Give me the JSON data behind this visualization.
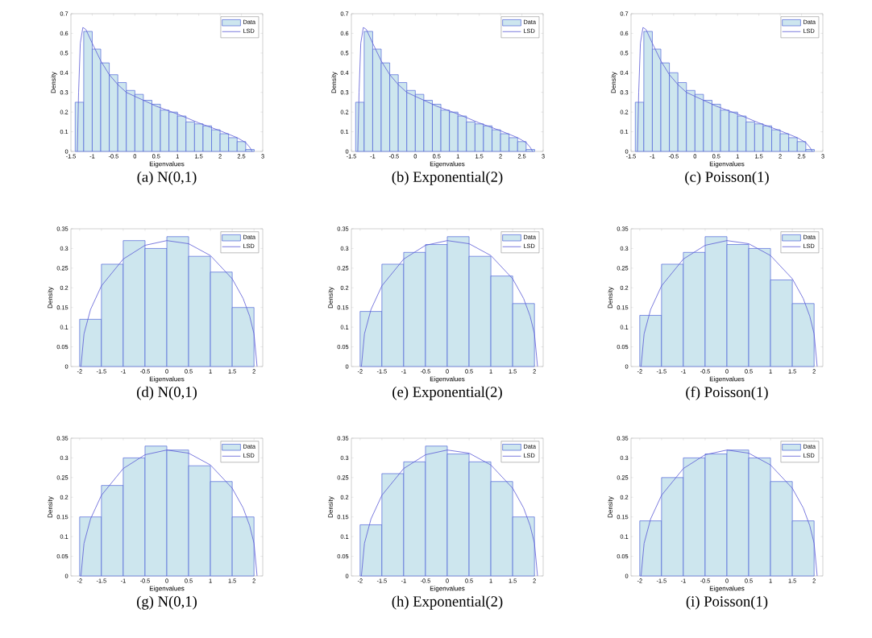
{
  "chart_data": [
    {
      "type": "histogram",
      "title": "(a) N(0,1)",
      "xlabel": "Eigenvalues",
      "ylabel": "Density",
      "xlim": [
        -1.5,
        3
      ],
      "xticks": [
        -1.5,
        -1,
        -0.5,
        0,
        0.5,
        1,
        1.5,
        2,
        2.5,
        3
      ],
      "ylim": [
        0,
        0.7
      ],
      "yticks": [
        0,
        0.1,
        0.2,
        0.3,
        0.4,
        0.5,
        0.6,
        0.7
      ],
      "legend": "top right",
      "series": [
        {
          "name": "Data",
          "color": "#cde6ee",
          "bins": [
            -1.4,
            -1.2,
            -1.0,
            -0.8,
            -0.6,
            -0.4,
            -0.2,
            0.0,
            0.2,
            0.4,
            0.6,
            0.8,
            1.0,
            1.2,
            1.4,
            1.6,
            1.8,
            2.0,
            2.2,
            2.4,
            2.6,
            2.8
          ],
          "values": [
            0.25,
            0.61,
            0.52,
            0.45,
            0.39,
            0.35,
            0.31,
            0.29,
            0.26,
            0.24,
            0.21,
            0.2,
            0.18,
            0.15,
            0.14,
            0.13,
            0.11,
            0.09,
            0.07,
            0.05,
            0.01
          ]
        },
        {
          "name": "LSD",
          "type": "line",
          "color": "#5b5bd6",
          "x": [
            -1.35,
            -1.32,
            -1.28,
            -1.22,
            -1.15,
            -1.0,
            -0.8,
            -0.6,
            -0.4,
            -0.2,
            0,
            0.2,
            0.5,
            1.0,
            1.5,
            2.0,
            2.4,
            2.6,
            2.7,
            2.75
          ],
          "values": [
            0,
            0.3,
            0.55,
            0.63,
            0.62,
            0.55,
            0.46,
            0.39,
            0.34,
            0.3,
            0.28,
            0.26,
            0.23,
            0.19,
            0.145,
            0.105,
            0.07,
            0.045,
            0.02,
            0
          ]
        }
      ]
    },
    {
      "type": "histogram",
      "title": "(b) Exponential(2)",
      "xlabel": "Eigenvalues",
      "ylabel": "Density",
      "xlim": [
        -1.5,
        3
      ],
      "xticks": [
        -1.5,
        -1,
        -0.5,
        0,
        0.5,
        1,
        1.5,
        2,
        2.5,
        3
      ],
      "ylim": [
        0,
        0.7
      ],
      "yticks": [
        0,
        0.1,
        0.2,
        0.3,
        0.4,
        0.5,
        0.6,
        0.7
      ],
      "legend": "top right",
      "series": [
        {
          "name": "Data",
          "color": "#cde6ee",
          "bins": [
            -1.4,
            -1.2,
            -1.0,
            -0.8,
            -0.6,
            -0.4,
            -0.2,
            0.0,
            0.2,
            0.4,
            0.6,
            0.8,
            1.0,
            1.2,
            1.4,
            1.6,
            1.8,
            2.0,
            2.2,
            2.4,
            2.6,
            2.8
          ],
          "values": [
            0.25,
            0.61,
            0.52,
            0.45,
            0.39,
            0.35,
            0.31,
            0.29,
            0.26,
            0.24,
            0.21,
            0.2,
            0.18,
            0.15,
            0.14,
            0.13,
            0.11,
            0.09,
            0.07,
            0.05,
            0.01
          ]
        },
        {
          "name": "LSD",
          "type": "line",
          "color": "#5b5bd6",
          "x": [
            -1.35,
            -1.32,
            -1.28,
            -1.22,
            -1.15,
            -1.0,
            -0.8,
            -0.6,
            -0.4,
            -0.2,
            0,
            0.2,
            0.5,
            1.0,
            1.5,
            2.0,
            2.4,
            2.6,
            2.7,
            2.75
          ],
          "values": [
            0,
            0.3,
            0.55,
            0.63,
            0.62,
            0.55,
            0.46,
            0.39,
            0.34,
            0.3,
            0.28,
            0.26,
            0.23,
            0.19,
            0.145,
            0.105,
            0.07,
            0.045,
            0.02,
            0
          ]
        }
      ]
    },
    {
      "type": "histogram",
      "title": "(c) Poisson(1)",
      "xlabel": "Eigenvalues",
      "ylabel": "Density",
      "xlim": [
        -1.5,
        3
      ],
      "xticks": [
        -1.5,
        -1,
        -0.5,
        0,
        0.5,
        1,
        1.5,
        2,
        2.5,
        3
      ],
      "ylim": [
        0,
        0.7
      ],
      "yticks": [
        0,
        0.1,
        0.2,
        0.3,
        0.4,
        0.5,
        0.6,
        0.7
      ],
      "legend": "top right",
      "series": [
        {
          "name": "Data",
          "color": "#cde6ee",
          "bins": [
            -1.4,
            -1.2,
            -1.0,
            -0.8,
            -0.6,
            -0.4,
            -0.2,
            0.0,
            0.2,
            0.4,
            0.6,
            0.8,
            1.0,
            1.2,
            1.4,
            1.6,
            1.8,
            2.0,
            2.2,
            2.4,
            2.6,
            2.8
          ],
          "values": [
            0.25,
            0.61,
            0.52,
            0.45,
            0.4,
            0.35,
            0.31,
            0.29,
            0.26,
            0.24,
            0.21,
            0.2,
            0.18,
            0.15,
            0.14,
            0.13,
            0.11,
            0.09,
            0.07,
            0.05,
            0.01
          ]
        },
        {
          "name": "LSD",
          "type": "line",
          "color": "#5b5bd6",
          "x": [
            -1.35,
            -1.32,
            -1.28,
            -1.22,
            -1.15,
            -1.0,
            -0.8,
            -0.6,
            -0.4,
            -0.2,
            0,
            0.2,
            0.5,
            1.0,
            1.5,
            2.0,
            2.4,
            2.6,
            2.7,
            2.75
          ],
          "values": [
            0,
            0.3,
            0.55,
            0.63,
            0.62,
            0.55,
            0.46,
            0.39,
            0.34,
            0.3,
            0.28,
            0.26,
            0.23,
            0.19,
            0.145,
            0.105,
            0.07,
            0.045,
            0.02,
            0
          ]
        }
      ]
    },
    {
      "type": "histogram",
      "title": "(d) N(0,1)",
      "xlabel": "Eigenvalues",
      "ylabel": "Density",
      "xlim": [
        -2.2,
        2.2
      ],
      "xticks": [
        -2,
        -1.5,
        -1,
        -0.5,
        0,
        0.5,
        1,
        1.5,
        2
      ],
      "ylim": [
        0,
        0.35
      ],
      "yticks": [
        0,
        0.05,
        0.1,
        0.15,
        0.2,
        0.25,
        0.3,
        0.35
      ],
      "legend": "top right",
      "series": [
        {
          "name": "Data",
          "color": "#cde6ee",
          "bins": [
            -2,
            -1.5,
            -1,
            -0.5,
            0,
            0.5,
            1,
            1.5,
            2
          ],
          "values": [
            0.12,
            0.26,
            0.32,
            0.3,
            0.33,
            0.28,
            0.24,
            0.15
          ]
        },
        {
          "name": "LSD",
          "type": "line",
          "color": "#5b5bd6",
          "x": [
            -1.97,
            -1.9,
            -1.75,
            -1.5,
            -1.0,
            -0.5,
            0,
            0.5,
            1.0,
            1.5,
            1.75,
            1.9,
            2.0,
            2.07
          ],
          "values": [
            0,
            0.083,
            0.145,
            0.205,
            0.273,
            0.308,
            0.32,
            0.312,
            0.282,
            0.223,
            0.173,
            0.128,
            0.083,
            0
          ]
        }
      ]
    },
    {
      "type": "histogram",
      "title": "(e) Exponential(2)",
      "xlabel": "Eigenvalues",
      "ylabel": "Density",
      "xlim": [
        -2.2,
        2.2
      ],
      "xticks": [
        -2,
        -1.5,
        -1,
        -0.5,
        0,
        0.5,
        1,
        1.5,
        2
      ],
      "ylim": [
        0,
        0.35
      ],
      "yticks": [
        0,
        0.05,
        0.1,
        0.15,
        0.2,
        0.25,
        0.3,
        0.35
      ],
      "legend": "top right",
      "series": [
        {
          "name": "Data",
          "color": "#cde6ee",
          "bins": [
            -2,
            -1.5,
            -1,
            -0.5,
            0,
            0.5,
            1,
            1.5,
            2
          ],
          "values": [
            0.14,
            0.26,
            0.29,
            0.31,
            0.33,
            0.28,
            0.23,
            0.16
          ]
        },
        {
          "name": "LSD",
          "type": "line",
          "color": "#5b5bd6",
          "x": [
            -1.97,
            -1.9,
            -1.75,
            -1.5,
            -1.0,
            -0.5,
            0,
            0.5,
            1.0,
            1.5,
            1.75,
            1.9,
            2.0,
            2.07
          ],
          "values": [
            0,
            0.083,
            0.145,
            0.205,
            0.273,
            0.308,
            0.32,
            0.312,
            0.282,
            0.223,
            0.173,
            0.128,
            0.083,
            0
          ]
        }
      ]
    },
    {
      "type": "histogram",
      "title": "(f) Poisson(1)",
      "xlabel": "Eigenvalues",
      "ylabel": "Density",
      "xlim": [
        -2.2,
        2.2
      ],
      "xticks": [
        -2,
        -1.5,
        -1,
        -0.5,
        0,
        0.5,
        1,
        1.5,
        2
      ],
      "ylim": [
        0,
        0.35
      ],
      "yticks": [
        0,
        0.05,
        0.1,
        0.15,
        0.2,
        0.25,
        0.3,
        0.35
      ],
      "legend": "top right",
      "series": [
        {
          "name": "Data",
          "color": "#cde6ee",
          "bins": [
            -2,
            -1.5,
            -1,
            -0.5,
            0,
            0.5,
            1,
            1.5,
            2
          ],
          "values": [
            0.13,
            0.26,
            0.29,
            0.33,
            0.31,
            0.3,
            0.22,
            0.16
          ]
        },
        {
          "name": "LSD",
          "type": "line",
          "color": "#5b5bd6",
          "x": [
            -1.97,
            -1.9,
            -1.75,
            -1.5,
            -1.0,
            -0.5,
            0,
            0.5,
            1.0,
            1.5,
            1.75,
            1.9,
            2.0,
            2.07
          ],
          "values": [
            0,
            0.083,
            0.145,
            0.205,
            0.273,
            0.308,
            0.32,
            0.312,
            0.282,
            0.223,
            0.173,
            0.128,
            0.083,
            0
          ]
        }
      ]
    },
    {
      "type": "histogram",
      "title": "(g) N(0,1)",
      "xlabel": "Eigenvalues",
      "ylabel": "Density",
      "xlim": [
        -2.2,
        2.2
      ],
      "xticks": [
        -2,
        -1.5,
        -1,
        -0.5,
        0,
        0.5,
        1,
        1.5,
        2
      ],
      "ylim": [
        0,
        0.35
      ],
      "yticks": [
        0,
        0.05,
        0.1,
        0.15,
        0.2,
        0.25,
        0.3,
        0.35
      ],
      "legend": "top right",
      "series": [
        {
          "name": "Data",
          "color": "#cde6ee",
          "bins": [
            -2,
            -1.5,
            -1,
            -0.5,
            0,
            0.5,
            1,
            1.5,
            2
          ],
          "values": [
            0.15,
            0.23,
            0.3,
            0.33,
            0.32,
            0.28,
            0.24,
            0.15
          ]
        },
        {
          "name": "LSD",
          "type": "line",
          "color": "#5b5bd6",
          "x": [
            -1.97,
            -1.9,
            -1.75,
            -1.5,
            -1.0,
            -0.5,
            0,
            0.5,
            1.0,
            1.5,
            1.75,
            1.9,
            2.0,
            2.07
          ],
          "values": [
            0,
            0.083,
            0.145,
            0.205,
            0.273,
            0.308,
            0.32,
            0.312,
            0.282,
            0.223,
            0.173,
            0.128,
            0.083,
            0
          ]
        }
      ]
    },
    {
      "type": "histogram",
      "title": "(h) Exponential(2)",
      "xlabel": "Eigenvalues",
      "ylabel": "Density",
      "xlim": [
        -2.2,
        2.2
      ],
      "xticks": [
        -2,
        -1.5,
        -1,
        -0.5,
        0,
        0.5,
        1,
        1.5,
        2
      ],
      "ylim": [
        0,
        0.35
      ],
      "yticks": [
        0,
        0.05,
        0.1,
        0.15,
        0.2,
        0.25,
        0.3,
        0.35
      ],
      "legend": "top right",
      "series": [
        {
          "name": "Data",
          "color": "#cde6ee",
          "bins": [
            -2,
            -1.5,
            -1,
            -0.5,
            0,
            0.5,
            1,
            1.5,
            2
          ],
          "values": [
            0.13,
            0.26,
            0.29,
            0.33,
            0.31,
            0.29,
            0.24,
            0.15
          ]
        },
        {
          "name": "LSD",
          "type": "line",
          "color": "#5b5bd6",
          "x": [
            -1.97,
            -1.9,
            -1.75,
            -1.5,
            -1.0,
            -0.5,
            0,
            0.5,
            1.0,
            1.5,
            1.75,
            1.9,
            2.0,
            2.07
          ],
          "values": [
            0,
            0.083,
            0.145,
            0.205,
            0.273,
            0.308,
            0.32,
            0.312,
            0.282,
            0.223,
            0.173,
            0.128,
            0.083,
            0
          ]
        }
      ]
    },
    {
      "type": "histogram",
      "title": "(i) Poisson(1)",
      "xlabel": "Eigenvalues",
      "ylabel": "Density",
      "xlim": [
        -2.2,
        2.2
      ],
      "xticks": [
        -2,
        -1.5,
        -1,
        -0.5,
        0,
        0.5,
        1,
        1.5,
        2
      ],
      "ylim": [
        0,
        0.35
      ],
      "yticks": [
        0,
        0.05,
        0.1,
        0.15,
        0.2,
        0.25,
        0.3,
        0.35
      ],
      "legend": "top right",
      "series": [
        {
          "name": "Data",
          "color": "#cde6ee",
          "bins": [
            -2,
            -1.5,
            -1,
            -0.5,
            0,
            0.5,
            1,
            1.5,
            2
          ],
          "values": [
            0.14,
            0.25,
            0.3,
            0.31,
            0.32,
            0.3,
            0.24,
            0.14
          ]
        },
        {
          "name": "LSD",
          "type": "line",
          "color": "#5b5bd6",
          "x": [
            -1.97,
            -1.9,
            -1.75,
            -1.5,
            -1.0,
            -0.5,
            0,
            0.5,
            1.0,
            1.5,
            1.75,
            1.9,
            2.0,
            2.07
          ],
          "values": [
            0,
            0.083,
            0.145,
            0.205,
            0.273,
            0.308,
            0.32,
            0.312,
            0.282,
            0.223,
            0.173,
            0.128,
            0.083,
            0
          ]
        }
      ]
    }
  ]
}
